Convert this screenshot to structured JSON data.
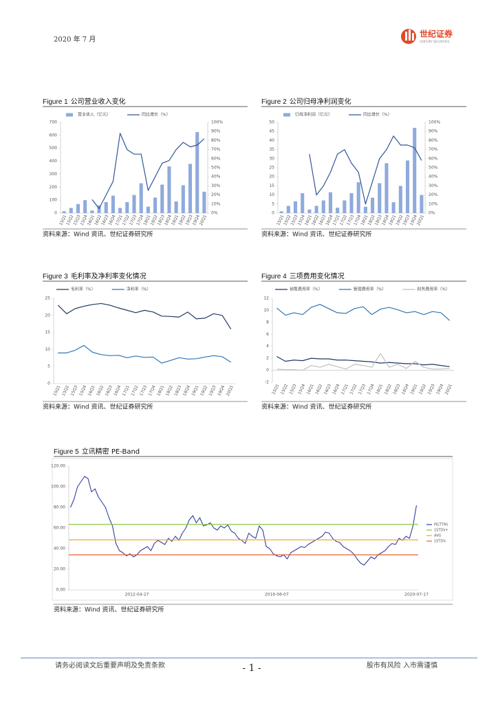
{
  "header": {
    "date": "2020 年 7 月",
    "logo_name": "世纪证券",
    "logo_en": "CENTURY SECURITIES"
  },
  "footer": {
    "disclaimer": "请务必阅读文后重要声明及免责条款",
    "page": "- 1 -",
    "risk": "股市有风险  入市需谨慎"
  },
  "chart_data": [
    {
      "type": "bar",
      "label": "Figure 1",
      "title": "公司营业收入变化",
      "source": "资料来源：Wind 资讯、世纪证券研究所",
      "legend": "top",
      "grid": false,
      "categories": [
        "15Q1",
        "15Q2",
        "15Q3",
        "15Q4",
        "16Q1",
        "16Q2",
        "16Q3",
        "16Q4",
        "17Q1",
        "17Q2",
        "17Q3",
        "17Q4",
        "18Q1",
        "18Q2",
        "18Q3",
        "18Q4",
        "19Q1",
        "19Q2",
        "19Q3",
        "19Q4",
        "20Q1"
      ],
      "series": [
        {
          "name": "营业收入（亿元）",
          "type": "bar",
          "color": "#8faadc",
          "values": [
            15,
            40,
            70,
            100,
            20,
            60,
            85,
            135,
            40,
            85,
            140,
            230,
            50,
            120,
            220,
            360,
            90,
            215,
            380,
            625,
            165
          ]
        },
        {
          "name": "同比增长（%）",
          "type": "line",
          "axis": "y2",
          "color": "#2f5597",
          "values": [
            null,
            null,
            null,
            null,
            15,
            5,
            20,
            35,
            88,
            70,
            65,
            65,
            25,
            40,
            55,
            58,
            70,
            78,
            73,
            75,
            82
          ]
        }
      ],
      "ylim": [
        0,
        700
      ],
      "yticks": [
        0,
        100,
        200,
        300,
        400,
        500,
        600,
        700
      ],
      "y2lim": [
        0,
        100
      ],
      "y2ticks": [
        {
          "value": 0,
          "label": "0%"
        },
        {
          "value": 10,
          "label": "10%"
        },
        {
          "value": 20,
          "label": "20%"
        },
        {
          "value": 30,
          "label": "30%"
        },
        {
          "value": 40,
          "label": "40%"
        },
        {
          "value": 50,
          "label": "50%"
        },
        {
          "value": 60,
          "label": "60%"
        },
        {
          "value": 70,
          "label": "70%"
        },
        {
          "value": 80,
          "label": "80%"
        },
        {
          "value": 90,
          "label": "90%"
        },
        {
          "value": 100,
          "label": "100%"
        }
      ]
    },
    {
      "type": "bar",
      "label": "Figure 2",
      "title": "公司归母净利润变化",
      "source": "资料来源：Wind 资讯、世纪证券研究所",
      "legend": "top",
      "grid": false,
      "categories": [
        "15Q1",
        "15Q2",
        "15Q3",
        "15Q4",
        "16Q1",
        "16Q2",
        "16Q3",
        "16Q4",
        "17Q1",
        "17Q2",
        "17Q3",
        "17Q4",
        "18Q1",
        "18Q2",
        "18Q3",
        "18Q4",
        "19Q1",
        "19Q2",
        "19Q3",
        "19Q4",
        "20Q1"
      ],
      "series": [
        {
          "name": "归母净利润（亿元）",
          "type": "bar",
          "color": "#8faadc",
          "values": [
            1,
            4,
            6.5,
            11,
            2,
            4,
            7,
            11.5,
            3,
            7,
            11,
            17,
            3.5,
            8.5,
            16.5,
            27.5,
            6,
            15,
            29,
            47,
            10
          ]
        },
        {
          "name": "同比增长（%）",
          "type": "line",
          "axis": "y2",
          "color": "#2f5597",
          "values": [
            null,
            null,
            null,
            null,
            65,
            20,
            30,
            45,
            65,
            70,
            55,
            45,
            10,
            35,
            60,
            70,
            85,
            75,
            75,
            72,
            58
          ]
        }
      ],
      "ylim": [
        0,
        50
      ],
      "yticks": [
        0,
        5,
        10,
        15,
        20,
        25,
        30,
        35,
        40,
        45,
        50
      ],
      "y2lim": [
        0,
        100
      ],
      "y2ticks": [
        {
          "value": 0,
          "label": "0%"
        },
        {
          "value": 10,
          "label": "10%"
        },
        {
          "value": 20,
          "label": "20%"
        },
        {
          "value": 30,
          "label": "30%"
        },
        {
          "value": 40,
          "label": "40%"
        },
        {
          "value": 50,
          "label": "50%"
        },
        {
          "value": 60,
          "label": "60%"
        },
        {
          "value": 70,
          "label": "70%"
        },
        {
          "value": 80,
          "label": "80%"
        },
        {
          "value": 90,
          "label": "90%"
        },
        {
          "value": 100,
          "label": "100%"
        }
      ]
    },
    {
      "type": "line",
      "label": "Figure 3",
      "title": "毛利率及净利率变化情况",
      "source": "资料来源：Wind 资讯、世纪证券研究所",
      "legend": "top",
      "grid": false,
      "categories": [
        "15Q1",
        "15Q2",
        "15Q3",
        "15Q4",
        "16Q1",
        "16Q2",
        "16Q3",
        "16Q4",
        "17Q1",
        "17Q2",
        "17Q3",
        "17Q4",
        "18Q1",
        "18Q2",
        "18Q3",
        "18Q4",
        "19Q1",
        "19Q2",
        "19Q3",
        "19Q4",
        "20Q1"
      ],
      "series": [
        {
          "name": "毛利率（%）",
          "type": "line",
          "color": "#1f3864",
          "values": [
            23,
            20.5,
            22,
            22.7,
            23.2,
            23.5,
            23,
            22.2,
            21.5,
            20.8,
            21.5,
            21,
            19.8,
            19.7,
            19.5,
            21,
            19,
            19.2,
            20.5,
            20,
            16
          ]
        },
        {
          "name": "净利率（%）",
          "type": "line",
          "color": "#2e75b6",
          "values": [
            9,
            9,
            9.8,
            11.2,
            9.2,
            8.5,
            8.2,
            8.3,
            7.6,
            8.1,
            7.7,
            7.8,
            6,
            6.8,
            7.6,
            7.2,
            7.3,
            7.8,
            8.2,
            7.9,
            6.3
          ]
        }
      ],
      "ylim": [
        0,
        25
      ],
      "yticks": [
        0,
        5,
        10,
        15,
        20,
        25
      ]
    },
    {
      "type": "line",
      "label": "Figure 4",
      "title": "三项费用变化情况",
      "source": "资料来源：Wind 资讯、世纪证券研究所",
      "legend": "top",
      "grid": false,
      "categories": [
        "15Q1",
        "15Q2",
        "15Q3",
        "15Q4",
        "16Q1",
        "16Q2",
        "16Q3",
        "16Q4",
        "17Q1",
        "17Q2",
        "17Q3",
        "17Q4",
        "18Q1",
        "18Q2",
        "18Q3",
        "18Q4",
        "19Q1",
        "19Q2",
        "19Q3",
        "19Q4",
        "20Q1"
      ],
      "series": [
        {
          "name": "销售费用率（%）",
          "type": "line",
          "color": "#1f3864",
          "values": [
            2.3,
            1.5,
            1.7,
            1.6,
            2.0,
            1.9,
            1.9,
            1.7,
            1.7,
            1.6,
            1.5,
            1.4,
            1.2,
            1.3,
            1.2,
            1.1,
            1.1,
            0.9,
            1.0,
            0.8,
            0.6
          ]
        },
        {
          "name": "管理费用率（%）",
          "type": "line",
          "color": "#2e75b6",
          "values": [
            10.4,
            9.2,
            9.6,
            9.3,
            10.5,
            11,
            10.3,
            9.6,
            9.5,
            10.3,
            10.6,
            9.3,
            10.2,
            10.5,
            10.1,
            9.6,
            9.8,
            9.3,
            9.8,
            9.6,
            8.3
          ]
        },
        {
          "name": "财务费用率（%）",
          "type": "line",
          "color": "#bfbfbf",
          "values": [
            0.2,
            0.1,
            0.1,
            0,
            0.8,
            0.5,
            1.0,
            0.6,
            0.2,
            1.0,
            0.8,
            0.5,
            2.8,
            0.5,
            1.0,
            0.3,
            1.5,
            0.5,
            0.2,
            0.2,
            0.3
          ]
        }
      ],
      "ylim": [
        -2,
        12
      ],
      "yticks": [
        -2,
        0,
        2,
        4,
        6,
        8,
        10,
        12
      ]
    },
    {
      "type": "line",
      "label": "Figure 5",
      "title": "立讯精密 PE-Band",
      "source": "资料来源：Wind 资讯、世纪证券研究所",
      "legend": "right",
      "grid": false,
      "categories": [
        null,
        null,
        null,
        null,
        null,
        null,
        null,
        null,
        null,
        null,
        null,
        null,
        null,
        null,
        null,
        null,
        null,
        null,
        null,
        "2012-04-27",
        null,
        null,
        null,
        null,
        null,
        null,
        null,
        null,
        null,
        null,
        null,
        null,
        null,
        null,
        null,
        null,
        null,
        null,
        null,
        null,
        null,
        null,
        null,
        null,
        null,
        null,
        null,
        null,
        null,
        null,
        null,
        null,
        null,
        null,
        null,
        null,
        null,
        null,
        null,
        "2016-06-07",
        null,
        null,
        null,
        null,
        null,
        null,
        null,
        null,
        null,
        null,
        null,
        null,
        null,
        null,
        null,
        null,
        null,
        null,
        null,
        null,
        null,
        null,
        null,
        null,
        null,
        null,
        null,
        null,
        null,
        null,
        null,
        null,
        null,
        null,
        null,
        null,
        null,
        null,
        null,
        "2020-07-17"
      ],
      "series": [
        {
          "name": "PE(TTM)",
          "type": "line",
          "color": "#2f3f9f",
          "values": [
            80,
            88,
            100,
            105,
            110,
            108,
            95,
            98,
            90,
            85,
            80,
            70,
            62,
            45,
            38,
            36,
            33,
            35,
            32,
            34,
            38,
            40,
            42,
            38,
            45,
            48,
            46,
            44,
            50,
            47,
            52,
            48,
            55,
            60,
            68,
            72,
            65,
            70,
            62,
            63,
            65,
            60,
            58,
            62,
            60,
            63,
            57,
            55,
            50,
            48,
            45,
            55,
            52,
            50,
            62,
            58,
            42,
            40,
            35,
            33,
            32,
            34,
            30,
            36,
            38,
            40,
            42,
            41,
            44,
            46,
            48,
            50,
            52,
            56,
            55,
            50,
            47,
            46,
            42,
            40,
            38,
            35,
            30,
            26,
            24,
            28,
            32,
            30,
            34,
            36,
            38,
            42,
            45,
            44,
            50,
            48,
            52,
            50,
            62,
            82
          ]
        },
        {
          "name": "1STDV+",
          "type": "band",
          "color": "#8cc63f",
          "value": 63.5
        },
        {
          "name": "AVG",
          "type": "band",
          "color": "#f4a52d",
          "value": 48.5
        },
        {
          "name": "1STDV-",
          "type": "band",
          "color": "#e8602c",
          "value": 34
        }
      ],
      "ylim": [
        0,
        120
      ],
      "yticks": [
        {
          "value": 0,
          "label": "0.00"
        },
        {
          "value": 20,
          "label": "20.00"
        },
        {
          "value": 40,
          "label": "40.00"
        },
        {
          "value": 60,
          "label": "60.00"
        },
        {
          "value": 80,
          "label": "80.00"
        },
        {
          "value": 100,
          "label": "100.00"
        },
        {
          "value": 120,
          "label": "120.00"
        }
      ]
    }
  ]
}
